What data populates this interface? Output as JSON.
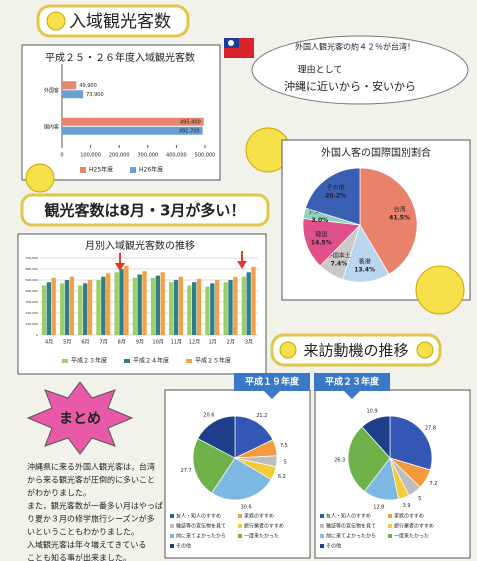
{
  "headings": {
    "visitors": "入域観光客数",
    "peak": "観光客数は8月・3月が多い！",
    "motive": "来訪動機の推移",
    "summary": "まとめ"
  },
  "bubble": {
    "line1": "外国人観光客の約４２％が台湾！",
    "line2": "理由として",
    "line3": "沖縄に近いから・安いから"
  },
  "summary_text": [
    "沖縄県に来る外国人観光客は，台湾",
    "から来る観光客が圧倒的に多いこと",
    "がわかりました。",
    "また，観光客数が一番多い月はやっぱ",
    "り夏か３月の修学旅行シーズンが多",
    "いということもわかりました。",
    "入域観光客は年々増えてきている",
    "ことも知る事が出来ました。"
  ],
  "chart_data": [
    {
      "type": "bar",
      "orientation": "horizontal",
      "title": "平成２５・２６年度入域観光客数",
      "categories": [
        "外国客",
        "国内客"
      ],
      "series": [
        {
          "name": "H25年度",
          "color": "#e8866c",
          "values": [
            49900,
            495400
          ],
          "value_labels": [
            "49,900",
            "495,400"
          ]
        },
        {
          "name": "H26年度",
          "color": "#6b9fd4",
          "values": [
            73900,
            491700
          ],
          "value_labels": [
            "73,900",
            "491,700"
          ]
        }
      ],
      "xlim": [
        0,
        500000
      ],
      "xticks": [
        0,
        {
          "value": 100000,
          "label": "100,000"
        },
        {
          "value": 200000,
          "label": "200,000"
        },
        {
          "value": 300000,
          "label": "300,000"
        },
        {
          "value": 400000,
          "label": "400,000"
        },
        {
          "value": 500000,
          "label": "500,000"
        }
      ]
    },
    {
      "type": "pie",
      "title": "外国人客の国際国別割合",
      "categories": [
        "台湾",
        "香港",
        "中国本土",
        "韓国",
        "アメリカ",
        "その他"
      ],
      "values": [
        41.5,
        13.4,
        7.4,
        14.5,
        3.0,
        20.2
      ],
      "value_labels": [
        "41.5%",
        "13.4%",
        "7.4%",
        "14.5%",
        "3.0%",
        "20.2%"
      ],
      "colors": [
        "#e8826a",
        "#b9d6ee",
        "#c9c9c9",
        "#e0508a",
        "#8fd3bf",
        "#3a5fb4"
      ]
    },
    {
      "type": "bar",
      "title": "月別入域観光客数の推移",
      "categories": [
        "4月",
        "5月",
        "6月",
        "7月",
        "8月",
        "9月",
        "10月",
        "11月",
        "12月",
        "1月",
        "2月",
        "3月"
      ],
      "series": [
        {
          "name": "平成２３年度",
          "color": "#9ccf6a",
          "values": [
            450000,
            470000,
            450000,
            500000,
            570000,
            520000,
            520000,
            480000,
            450000,
            440000,
            480000,
            530000
          ]
        },
        {
          "name": "平成２４年度",
          "color": "#2f7f8a",
          "values": [
            480000,
            500000,
            470000,
            530000,
            600000,
            550000,
            540000,
            500000,
            480000,
            470000,
            500000,
            570000
          ]
        },
        {
          "name": "平成２５年度",
          "color": "#f2a14a",
          "values": [
            520000,
            530000,
            500000,
            560000,
            630000,
            580000,
            570000,
            530000,
            510000,
            500000,
            530000,
            620000
          ]
        }
      ],
      "ylim": [
        0,
        700000
      ],
      "yticks": [
        0,
        {
          "value": 100000,
          "label": "100,000"
        },
        {
          "value": 200000,
          "label": "200,000"
        },
        {
          "value": 300000,
          "label": "300,000"
        },
        {
          "value": 400000,
          "label": "400,000"
        },
        {
          "value": 500000,
          "label": "500,000"
        },
        {
          "value": 600000,
          "label": "600,000"
        },
        {
          "value": 700000,
          "label": "700,000"
        }
      ],
      "grid": true
    },
    {
      "type": "pie",
      "title": "平成１９年度",
      "categories": [
        "友人・知人のすすめ",
        "家族のすすめ",
        "雑誌等の宣伝物を見て",
        "旅行業者のすすめ",
        "前に来てよかったから",
        "一度来たかった",
        "その他"
      ],
      "values": [
        21.2,
        7.5,
        5,
        6.2,
        30.6,
        27.7,
        20.6
      ],
      "colors": [
        "#3456b4",
        "#f39a3c",
        "#bdbdbd",
        "#f2cc3a",
        "#7db7e4",
        "#6fb24a",
        "#1f3f8a"
      ]
    },
    {
      "type": "pie",
      "title": "平成２３年度",
      "categories": [
        "友人・知人のすすめ",
        "家族のすすめ",
        "雑誌等の宣伝物を見て",
        "旅行業者のすすめ",
        "前に来てよかったから",
        "一度来たかった",
        "その他"
      ],
      "values": [
        27.8,
        7.2,
        5,
        3.9,
        12.8,
        26.3,
        10.9
      ],
      "colors": [
        "#3456b4",
        "#f39a3c",
        "#bdbdbd",
        "#f2cc3a",
        "#7db7e4",
        "#6fb24a",
        "#1f3f8a"
      ]
    }
  ]
}
